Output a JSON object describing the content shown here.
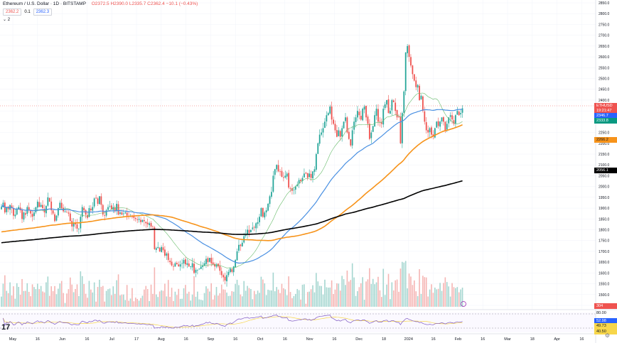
{
  "legend": {
    "symbol": "Ethereum / U.S. Dollar · 1D · BITSTAMP",
    "ohlc": "O2372.5 H2390.0 L2335.7 C2362.4 −10.1 (−0.43%)",
    "value1": "2362.2",
    "spread": "0.1",
    "value2": "2362.3",
    "indicator_count": "2"
  },
  "price_axis": {
    "ticks": [
      "2850.0",
      "2800.0",
      "2750.0",
      "2700.0",
      "2650.0",
      "2600.0",
      "2550.0",
      "2500.0",
      "2450.0",
      "2400.0",
      "2350.0",
      "2300.0",
      "2250.0",
      "2200.0",
      "2150.0",
      "2100.0",
      "2050.0",
      "2000.0",
      "1950.0",
      "1900.0",
      "1850.0",
      "1800.0",
      "1750.0",
      "1700.0",
      "1650.0",
      "1600.0",
      "1550.0",
      "1500.0",
      "1450.0"
    ],
    "tags": [
      {
        "text": "ETHUSD 2362.4",
        "bg": "#ef5350",
        "fg": "#ffffff"
      },
      {
        "text": "19:21:47",
        "bg": "#ef5350",
        "fg": "#ffffff"
      },
      {
        "text": "2346.7",
        "bg": "#2962ff",
        "fg": "#ffffff"
      },
      {
        "text": "2333.8",
        "bg": "#089981",
        "fg": "#ffffff"
      },
      {
        "text": "2266.2",
        "bg": "#f7931a",
        "fg": "#131722"
      },
      {
        "text": "2056.1",
        "bg": "#000000",
        "fg": "#ffffff"
      },
      {
        "text": "304",
        "bg": "#ef5350",
        "fg": "#ffffff"
      }
    ]
  },
  "rsi_axis": {
    "ticks": [
      "80.00",
      "40.00"
    ],
    "tags": [
      {
        "text": "52.98",
        "bg": "#2962ff",
        "fg": "#ffffff"
      },
      {
        "text": "49.73",
        "bg": "#f7d64a",
        "fg": "#131722"
      },
      {
        "text": "40.50",
        "bg": "#f7d64a",
        "fg": "#131722"
      }
    ]
  },
  "time_axis": [
    "May",
    "16",
    "Jun",
    "16",
    "Jul",
    "17",
    "Aug",
    "16",
    "Sep",
    "16",
    "Oct",
    "16",
    "Nov",
    "16",
    "Dec",
    "18",
    "2024",
    "16",
    "Feb",
    "16",
    "Mar",
    "18",
    "Apr",
    "16"
  ],
  "colors": {
    "up": "#26a69a",
    "down": "#ef5350",
    "ma_green": "#66bb6a",
    "ma_blue": "#4a90e2",
    "ma_orange": "#f7931a",
    "ma_black": "#000000"
  },
  "chart_data": {
    "type": "candlestick",
    "symbol": "ETHUSD",
    "ylim": [
      1450,
      2850
    ],
    "close": [
      1905,
      1925,
      1880,
      1905,
      1895,
      1915,
      1900,
      1865,
      1870,
      1895,
      1905,
      1890,
      1850,
      1880,
      1870,
      1905,
      1890,
      1875,
      1860,
      1880,
      1905,
      1930,
      1905,
      1915,
      1900,
      1880,
      1910,
      1950,
      1930,
      1890,
      1875,
      1840,
      1865,
      1900,
      1925,
      1900,
      1885,
      1885,
      1880,
      1875,
      1840,
      1815,
      1830,
      1825,
      1805,
      1805,
      1860,
      1905,
      1890,
      1870,
      1855,
      1900,
      1890,
      1905,
      1945,
      1945,
      1920,
      1955,
      1915,
      1870,
      1865,
      1890,
      1905,
      1910,
      1895,
      1905,
      1885,
      1920,
      1870,
      1880,
      1870,
      1875,
      1880,
      1865,
      1860,
      1865,
      1860,
      1855,
      1850,
      1845,
      1850,
      1835,
      1845,
      1840,
      1830,
      1825,
      1830,
      1815,
      1815,
      1710,
      1715,
      1720,
      1700,
      1720,
      1705,
      1680,
      1690,
      1660,
      1650,
      1635,
      1630,
      1645,
      1640,
      1630,
      1640,
      1645,
      1660,
      1640,
      1645,
      1630,
      1630,
      1645,
      1600,
      1615,
      1615,
      1620,
      1630,
      1635,
      1645,
      1665,
      1650,
      1670,
      1645,
      1640,
      1630,
      1640,
      1630,
      1610,
      1590,
      1580,
      1565,
      1590,
      1605,
      1620,
      1605,
      1630,
      1660,
      1700,
      1730,
      1725,
      1740,
      1770,
      1780,
      1800,
      1785,
      1800,
      1810,
      1810,
      1830,
      1835,
      1860,
      1900,
      1860,
      1880,
      1890,
      1920,
      1955,
      1975,
      2050,
      2080,
      2100,
      2070,
      2070,
      2045,
      2040,
      2050,
      2060,
      1995,
      1990,
      1980,
      1985,
      2000,
      2010,
      2030,
      2025,
      2040,
      2060,
      2060,
      2040,
      2060,
      2040,
      2070,
      2080,
      2150,
      2200,
      2240,
      2250,
      2270,
      2300,
      2330,
      2340,
      2370,
      2310,
      2290,
      2260,
      2230,
      2260,
      2230,
      2270,
      2300,
      2320,
      2250,
      2220,
      2190,
      2260,
      2300,
      2320,
      2350,
      2330,
      2310,
      2360,
      2370,
      2320,
      2290,
      2220,
      2250,
      2280,
      2330,
      2360,
      2300,
      2300,
      2290,
      2360,
      2380,
      2400,
      2340,
      2350,
      2400,
      2390,
      2350,
      2320,
      2320,
      2200,
      2340,
      2440,
      2620,
      2650,
      2600,
      2560,
      2520,
      2490,
      2460,
      2470,
      2400,
      2420,
      2350,
      2300,
      2260,
      2250,
      2270,
      2240,
      2230,
      2270,
      2300,
      2280,
      2300,
      2320,
      2300,
      2260,
      2290,
      2320,
      2330,
      2310,
      2290,
      2330,
      2350,
      2330,
      2340,
      2362
    ],
    "indicators": [
      "MA 20",
      "MA 50",
      "MA 100",
      "MA 200",
      "Volume",
      "RSI 14"
    ],
    "ma_periods": [
      20,
      50,
      100,
      200
    ]
  }
}
